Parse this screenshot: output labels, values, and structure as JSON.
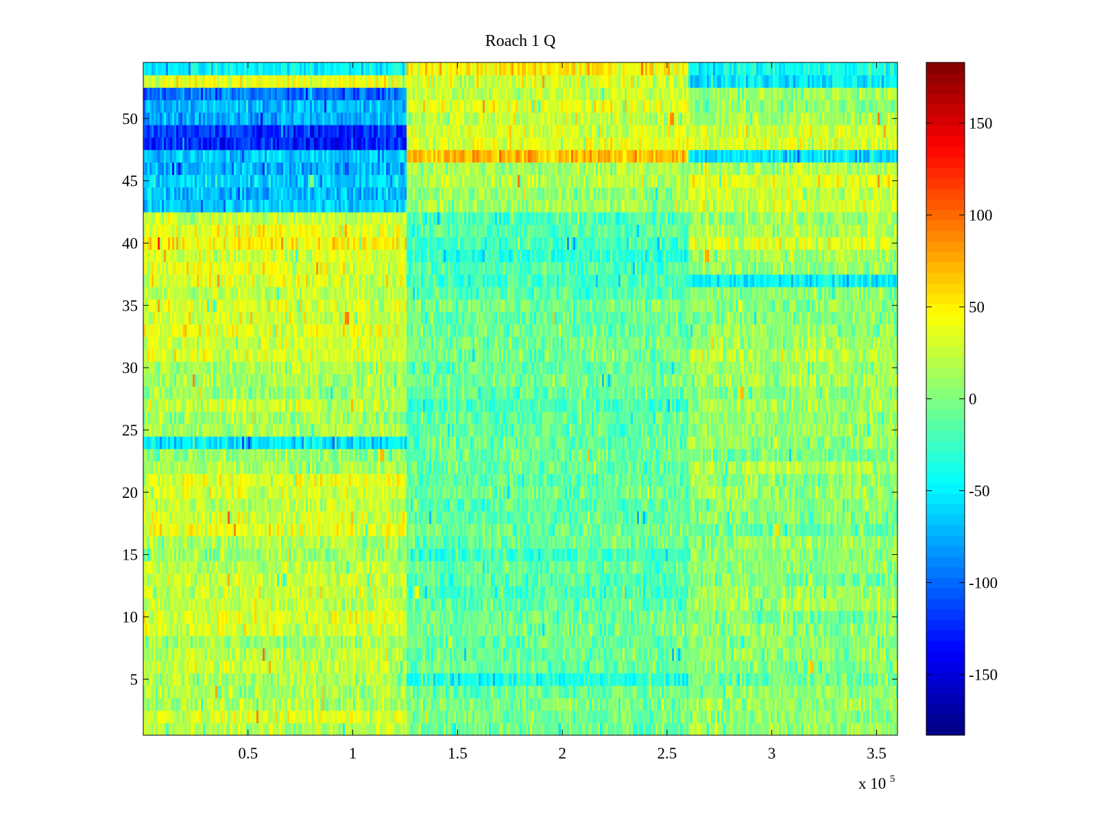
{
  "chart_data": {
    "type": "heatmap",
    "title": "Roach 1 Q",
    "xlabel": "",
    "ylabel": "",
    "x_exponent_label": {
      "base": "x 10",
      "exponent": "5"
    },
    "x_scale": 100000,
    "xlim": [
      0,
      3.6
    ],
    "ylim": [
      0.5,
      54.5
    ],
    "rows": 54,
    "x_ticks": [
      0.5,
      1,
      1.5,
      2,
      2.5,
      3,
      3.5
    ],
    "x_tick_labels": [
      "0.5",
      "1",
      "1.5",
      "2",
      "2.5",
      "3",
      "3.5"
    ],
    "y_ticks": [
      5,
      10,
      15,
      20,
      25,
      30,
      35,
      40,
      45,
      50
    ],
    "y_tick_labels": [
      "5",
      "10",
      "15",
      "20",
      "25",
      "30",
      "35",
      "40",
      "45",
      "50"
    ],
    "colorbar": {
      "colormap": "jet",
      "clim": [
        -183,
        183
      ],
      "ticks": [
        -150,
        -100,
        -50,
        0,
        50,
        100,
        150
      ],
      "tick_labels": [
        "-150",
        "-100",
        "-50",
        "0",
        "50",
        "100",
        "150"
      ]
    },
    "segments_x": [
      0,
      1.26,
      2.6,
      3.6
    ],
    "segment_row_means": {
      "rows_1_to_42": {
        "segment_1": [
          18,
          30,
          16,
          14,
          14,
          26,
          22,
          12,
          30,
          34,
          24,
          26,
          24,
          20,
          10,
          14,
          38,
          30,
          22,
          30,
          36,
          14,
          8,
          -55,
          16,
          12,
          24,
          10,
          14,
          16,
          32,
          26,
          36,
          30,
          30,
          22,
          34,
          36,
          30,
          48,
          40,
          26
        ],
        "segment_2": [
          -6,
          -4,
          -2,
          -6,
          -35,
          -8,
          -10,
          -6,
          -4,
          -8,
          -12,
          -18,
          -14,
          -10,
          -22,
          -8,
          -6,
          -14,
          -12,
          -6,
          -14,
          -10,
          -6,
          -8,
          -12,
          -10,
          -20,
          -10,
          -6,
          -8,
          -4,
          -6,
          -8,
          -10,
          -2,
          -16,
          -22,
          -18,
          -30,
          -24,
          -14,
          -20
        ],
        "segment_3": [
          8,
          4,
          10,
          4,
          -6,
          2,
          6,
          4,
          8,
          -2,
          14,
          10,
          0,
          6,
          2,
          10,
          -6,
          2,
          4,
          12,
          6,
          18,
          -4,
          8,
          10,
          4,
          12,
          6,
          14,
          10,
          24,
          14,
          8,
          2,
          6,
          4,
          -50,
          6,
          14,
          32,
          16,
          12
        ]
      },
      "rows_43_to_54": {
        "segment_1": [
          -65,
          -70,
          -60,
          -75,
          -65,
          -125,
          -120,
          -75,
          -70,
          -95,
          40,
          -50
        ],
        "segment_2": [
          10,
          8,
          20,
          15,
          70,
          35,
          30,
          25,
          35,
          25,
          30,
          50
        ],
        "segment_3": [
          30,
          25,
          35,
          20,
          -55,
          30,
          28,
          15,
          5,
          10,
          -50,
          -40
        ]
      }
    }
  }
}
